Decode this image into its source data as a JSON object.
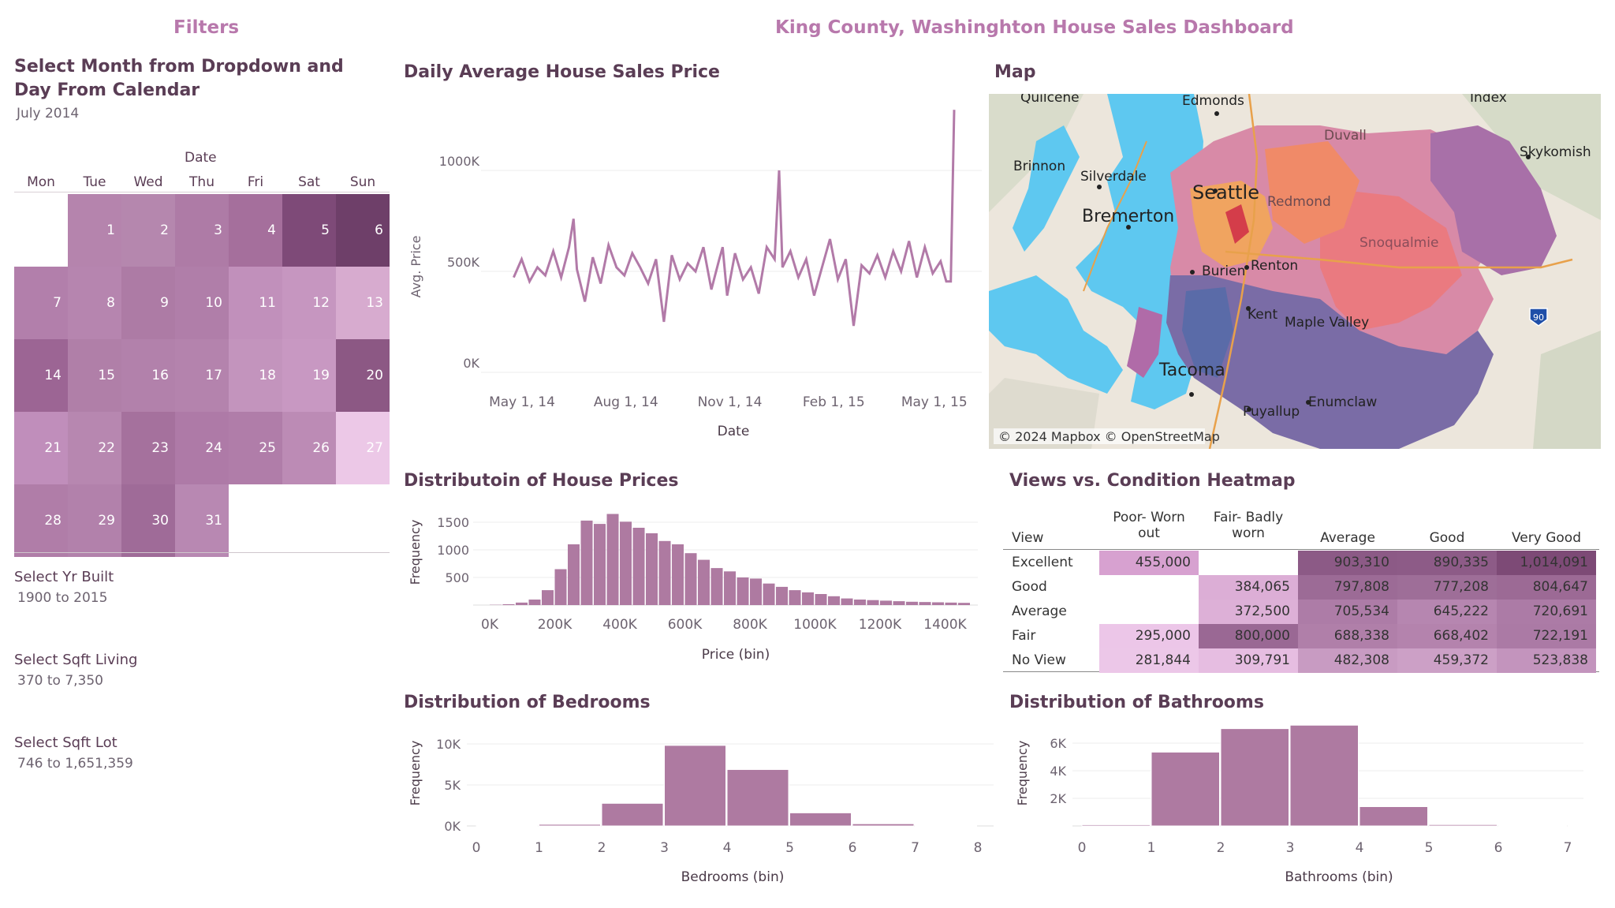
{
  "header": {
    "filters_title": "Filters",
    "dashboard_title": "King County, Washinghton House Sales Dashboard"
  },
  "filters": {
    "month_label_line1": "Select Month from Dropdown and",
    "month_label_line2": "Day From Calendar",
    "month_value": "July 2014",
    "calendar_header": "Date",
    "weekdays": [
      "Mon",
      "Tue",
      "Wed",
      "Thu",
      "Fri",
      "Sat",
      "Sun"
    ],
    "days": [
      "1",
      "2",
      "3",
      "4",
      "5",
      "6",
      "7",
      "8",
      "9",
      "10",
      "11",
      "12",
      "13",
      "14",
      "15",
      "16",
      "17",
      "18",
      "19",
      "20",
      "21",
      "22",
      "23",
      "24",
      "25",
      "26",
      "27",
      "28",
      "29",
      "30",
      "31"
    ],
    "day_colors": [
      "#b584ad",
      "#b587ae",
      "#ae7ba6",
      "#a56f9c",
      "#7e4a78",
      "#6e3f69",
      "#b27fab",
      "#b685af",
      "#ad7ba5",
      "#b07ea9",
      "#c190bb",
      "#c696c0",
      "#d7abcf",
      "#9c6594",
      "#b07fa8",
      "#b281ab",
      "#b483ad",
      "#c394bd",
      "#c898c2",
      "#8c5884",
      "#c08ebb",
      "#b787b0",
      "#a5719d",
      "#ae7aa7",
      "#b07da9",
      "#bc8bb5",
      "#ecc8e7",
      "#b07da8",
      "#b281ab",
      "#9f6b98",
      "#b888b2"
    ],
    "yr_built_label": "Select Yr Built",
    "yr_built_value": "1900 to 2015",
    "sqft_living_label": "Select Sqft Living",
    "sqft_living_value": "370 to 7,350",
    "sqft_lot_label": "Select Sqft Lot",
    "sqft_lot_value": "746 to 1,651,359"
  },
  "map": {
    "title": "Map",
    "attribution": "© 2024 Mapbox © OpenStreetMap",
    "places": [
      "Quilcene",
      "Edmonds",
      "Index",
      "Skykomish",
      "Duvall",
      "Brinnon",
      "Silverdale",
      "Seattle",
      "Redmond",
      "Snoqualmie",
      "Bremerton",
      "Burien",
      "Renton",
      "Kent",
      "Maple Valley",
      "Tacoma",
      "Puyallup",
      "Enumclaw"
    ],
    "highway_shield": "90"
  },
  "colors": {
    "bar": "#ae7aa1",
    "line": "#b27aa8",
    "title_pink": "#b878ac",
    "water": "#5ec8f0"
  },
  "chart_data": [
    {
      "type": "line",
      "title": "Daily Average House Sales Price",
      "xlabel": "Date",
      "ylabel": "Avg. Price",
      "x_ticks": [
        "May 1, 14",
        "Aug 1, 14",
        "Nov 1, 14",
        "Feb 1, 15",
        "May 1, 15"
      ],
      "y_ticks": [
        "0K",
        "500K",
        "1000K"
      ],
      "ylim": [
        0,
        1000000
      ],
      "xlim": [
        "2014-05-01",
        "2015-05-27"
      ],
      "series": [
        {
          "values": [
            [
              "2014-05-02",
              470000
            ],
            [
              "2014-05-09",
              560000
            ],
            [
              "2014-05-16",
              450000
            ],
            [
              "2014-05-23",
              520000
            ],
            [
              "2014-05-30",
              480000
            ],
            [
              "2014-06-06",
              600000
            ],
            [
              "2014-06-13",
              470000
            ],
            [
              "2014-06-20",
              620000
            ],
            [
              "2014-06-24",
              760000
            ],
            [
              "2014-06-27",
              510000
            ],
            [
              "2014-07-04",
              350000
            ],
            [
              "2014-07-11",
              570000
            ],
            [
              "2014-07-18",
              440000
            ],
            [
              "2014-07-25",
              630000
            ],
            [
              "2014-08-01",
              520000
            ],
            [
              "2014-08-08",
              480000
            ],
            [
              "2014-08-15",
              590000
            ],
            [
              "2014-08-22",
              520000
            ],
            [
              "2014-08-29",
              440000
            ],
            [
              "2014-09-05",
              560000
            ],
            [
              "2014-09-12",
              250000
            ],
            [
              "2014-09-19",
              580000
            ],
            [
              "2014-09-26",
              460000
            ],
            [
              "2014-10-03",
              540000
            ],
            [
              "2014-10-10",
              500000
            ],
            [
              "2014-10-17",
              620000
            ],
            [
              "2014-10-24",
              410000
            ],
            [
              "2014-10-31",
              560000
            ],
            [
              "2014-11-03",
              620000
            ],
            [
              "2014-11-07",
              380000
            ],
            [
              "2014-11-14",
              590000
            ],
            [
              "2014-11-21",
              460000
            ],
            [
              "2014-11-28",
              520000
            ],
            [
              "2014-12-05",
              390000
            ],
            [
              "2014-12-12",
              620000
            ],
            [
              "2014-12-19",
              560000
            ],
            [
              "2014-12-23",
              1000000
            ],
            [
              "2014-12-26",
              520000
            ],
            [
              "2015-01-02",
              600000
            ],
            [
              "2015-01-09",
              470000
            ],
            [
              "2015-01-16",
              560000
            ],
            [
              "2015-01-23",
              380000
            ],
            [
              "2015-01-30",
              520000
            ],
            [
              "2015-02-06",
              660000
            ],
            [
              "2015-02-13",
              460000
            ],
            [
              "2015-02-20",
              560000
            ],
            [
              "2015-02-27",
              230000
            ],
            [
              "2015-03-06",
              530000
            ],
            [
              "2015-03-13",
              490000
            ],
            [
              "2015-03-20",
              580000
            ],
            [
              "2015-03-27",
              470000
            ],
            [
              "2015-04-03",
              600000
            ],
            [
              "2015-04-10",
              500000
            ],
            [
              "2015-04-17",
              650000
            ],
            [
              "2015-04-24",
              470000
            ],
            [
              "2015-05-01",
              620000
            ],
            [
              "2015-05-08",
              490000
            ],
            [
              "2015-05-15",
              550000
            ],
            [
              "2015-05-20",
              450000
            ],
            [
              "2015-05-24",
              450000
            ],
            [
              "2015-05-27",
              1300000
            ]
          ]
        }
      ]
    },
    {
      "type": "bar",
      "title": "Distributoin of House Prices",
      "xlabel": "Price (bin)",
      "ylabel": "Frequency",
      "x_ticks": [
        "0K",
        "200K",
        "400K",
        "600K",
        "800K",
        "1000K",
        "1200K",
        "1400K"
      ],
      "y_ticks": [
        "500",
        "1000",
        "1500"
      ],
      "bin_width": 40000,
      "bin_starts": [
        0,
        40000,
        80000,
        120000,
        160000,
        200000,
        240000,
        280000,
        320000,
        360000,
        400000,
        440000,
        480000,
        520000,
        560000,
        600000,
        640000,
        680000,
        720000,
        760000,
        800000,
        840000,
        880000,
        920000,
        960000,
        1000000,
        1040000,
        1080000,
        1120000,
        1160000,
        1200000,
        1240000,
        1280000,
        1320000,
        1360000,
        1400000,
        1440000
      ],
      "values": [
        5,
        15,
        45,
        100,
        270,
        650,
        1100,
        1530,
        1470,
        1650,
        1510,
        1400,
        1300,
        1160,
        1100,
        940,
        820,
        670,
        610,
        500,
        480,
        390,
        330,
        270,
        230,
        200,
        160,
        120,
        100,
        90,
        80,
        70,
        60,
        55,
        50,
        45,
        40
      ]
    },
    {
      "type": "heatmap",
      "title": "Views vs. Condition Heatmap",
      "row_header": "View",
      "columns": [
        "Poor- Worn out",
        "Fair- Badly worn",
        "Average",
        "Good",
        "Very Good"
      ],
      "rows": [
        "Excellent",
        "Good",
        "Average",
        "Fair",
        "No View"
      ],
      "values": [
        [
          "455,000",
          "",
          "903,310",
          "890,335",
          "1,014,091"
        ],
        [
          "",
          "384,065",
          "797,808",
          "777,208",
          "804,647"
        ],
        [
          "",
          "372,500",
          "705,534",
          "645,222",
          "720,691"
        ],
        [
          "295,000",
          "800,000",
          "688,338",
          "668,402",
          "722,191"
        ],
        [
          "281,844",
          "309,791",
          "482,308",
          "459,372",
          "523,838"
        ]
      ],
      "cell_colors": [
        [
          "#d7a1d0",
          "",
          "#8c5a86",
          "#8d5b87",
          "#7d4a76"
        ],
        [
          "",
          "#dcaed6",
          "#9c6b96",
          "#9e6e98",
          "#9c6a95"
        ],
        [
          "",
          "#ddb0d7",
          "#ad7ca7",
          "#b686b0",
          "#ac7ba6"
        ],
        [
          "#ecc6e8",
          "#9a6894",
          "#b07fa9",
          "#b483ad",
          "#ab7aa5"
        ],
        [
          "#ecc7e8",
          "#e6bde1",
          "#c89bc2",
          "#cca0c6",
          "#c394bd"
        ]
      ]
    },
    {
      "type": "bar",
      "title": "Distribution of Bedrooms",
      "xlabel": "Bedrooms (bin)",
      "ylabel": "Frequency",
      "x_ticks": [
        "0",
        "1",
        "2",
        "3",
        "4",
        "5",
        "6",
        "7",
        "8"
      ],
      "y_ticks": [
        "0K",
        "5K",
        "10K"
      ],
      "categories": [
        "0",
        "1",
        "2",
        "3",
        "4",
        "5",
        "6",
        "7"
      ],
      "values": [
        13,
        200,
        2760,
        9820,
        6880,
        1600,
        270,
        40
      ]
    },
    {
      "type": "bar",
      "title": "Distribution of Bathrooms",
      "xlabel": "Bathrooms (bin)",
      "ylabel": "Frequency",
      "x_ticks": [
        "0",
        "1",
        "2",
        "3",
        "4",
        "5",
        "6",
        "7"
      ],
      "y_ticks": [
        "2K",
        "4K",
        "6K"
      ],
      "categories": [
        "0",
        "1",
        "2",
        "3",
        "4",
        "5",
        "6",
        "7"
      ],
      "values": [
        90,
        5350,
        7050,
        7300,
        1400,
        100,
        20,
        5
      ]
    }
  ]
}
